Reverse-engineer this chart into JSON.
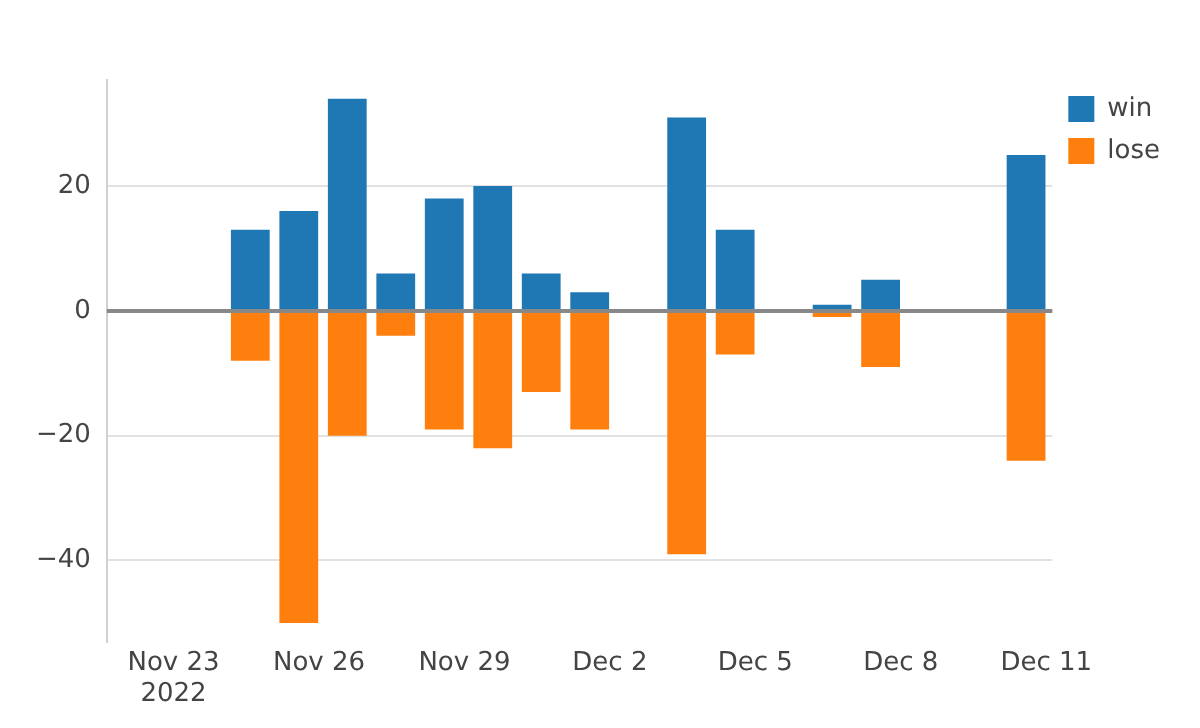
{
  "chart_data": {
    "type": "bar",
    "stacked": true,
    "x": [
      "2022-11-24T14:00",
      "2022-11-25T14:00",
      "2022-11-26T14:00",
      "2022-11-27T14:00",
      "2022-11-28T14:00",
      "2022-11-29T14:00",
      "2022-11-30T14:00",
      "2022-12-01T14:00",
      "2022-12-03T14:00",
      "2022-12-04T14:00",
      "2022-12-06T14:00",
      "2022-12-07T14:00",
      "2022-12-10T14:00"
    ],
    "series": [
      {
        "name": "win",
        "color": "#1f77b4",
        "values": [
          13,
          16,
          34,
          6,
          18,
          20,
          6,
          3,
          31,
          13,
          1,
          5,
          25
        ]
      },
      {
        "name": "lose",
        "color": "#ff7f0e",
        "values": [
          -8,
          -50,
          -20,
          -4,
          -19,
          -22,
          -13,
          -19,
          -39,
          -7,
          -1,
          -9,
          -24
        ]
      }
    ],
    "xlim": [
      "2022-11-21T15:00",
      "2022-12-11T03:00"
    ],
    "xticks": [
      {
        "value": "2022-11-23",
        "label": "Nov 23\n2022"
      },
      {
        "value": "2022-11-26",
        "label": "Nov 26"
      },
      {
        "value": "2022-11-29",
        "label": "Nov 29"
      },
      {
        "value": "2022-12-02",
        "label": "Dec 2"
      },
      {
        "value": "2022-12-05",
        "label": "Dec 5"
      },
      {
        "value": "2022-12-08",
        "label": "Dec 8"
      },
      {
        "value": "2022-12-11",
        "label": "Dec 11"
      }
    ],
    "ylim": [
      -53,
      37
    ],
    "yticks": [
      {
        "value": -40,
        "label": "−40"
      },
      {
        "value": -20,
        "label": "−20"
      },
      0,
      20
    ],
    "grid": "y",
    "legend": "top right"
  }
}
